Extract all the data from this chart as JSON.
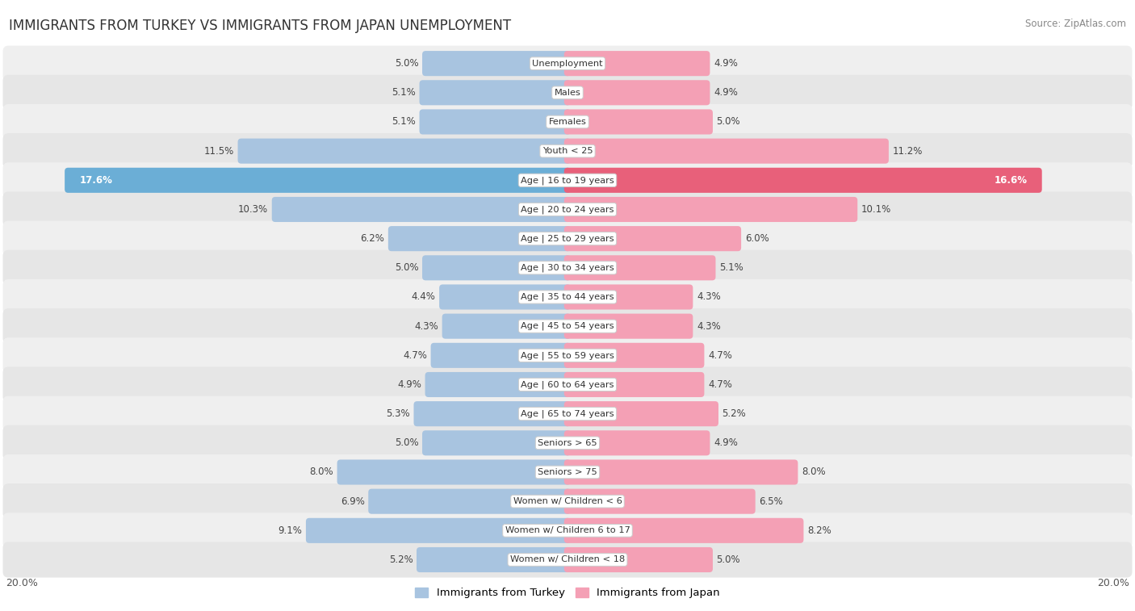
{
  "title": "IMMIGRANTS FROM TURKEY VS IMMIGRANTS FROM JAPAN UNEMPLOYMENT",
  "source": "Source: ZipAtlas.com",
  "categories": [
    "Unemployment",
    "Males",
    "Females",
    "Youth < 25",
    "Age | 16 to 19 years",
    "Age | 20 to 24 years",
    "Age | 25 to 29 years",
    "Age | 30 to 34 years",
    "Age | 35 to 44 years",
    "Age | 45 to 54 years",
    "Age | 55 to 59 years",
    "Age | 60 to 64 years",
    "Age | 65 to 74 years",
    "Seniors > 65",
    "Seniors > 75",
    "Women w/ Children < 6",
    "Women w/ Children 6 to 17",
    "Women w/ Children < 18"
  ],
  "turkey_values": [
    5.0,
    5.1,
    5.1,
    11.5,
    17.6,
    10.3,
    6.2,
    5.0,
    4.4,
    4.3,
    4.7,
    4.9,
    5.3,
    5.0,
    8.0,
    6.9,
    9.1,
    5.2
  ],
  "japan_values": [
    4.9,
    4.9,
    5.0,
    11.2,
    16.6,
    10.1,
    6.0,
    5.1,
    4.3,
    4.3,
    4.7,
    4.7,
    5.2,
    4.9,
    8.0,
    6.5,
    8.2,
    5.0
  ],
  "turkey_color": "#a8c4e0",
  "japan_color": "#f4a0b5",
  "turkey_highlight_color": "#6baed6",
  "japan_highlight_color": "#e8607a",
  "bg_odd": "#efefef",
  "bg_even": "#e6e6e6",
  "max_value": 20.0,
  "title_fontsize": 12,
  "legend_turkey": "Immigrants from Turkey",
  "legend_japan": "Immigrants from Japan"
}
